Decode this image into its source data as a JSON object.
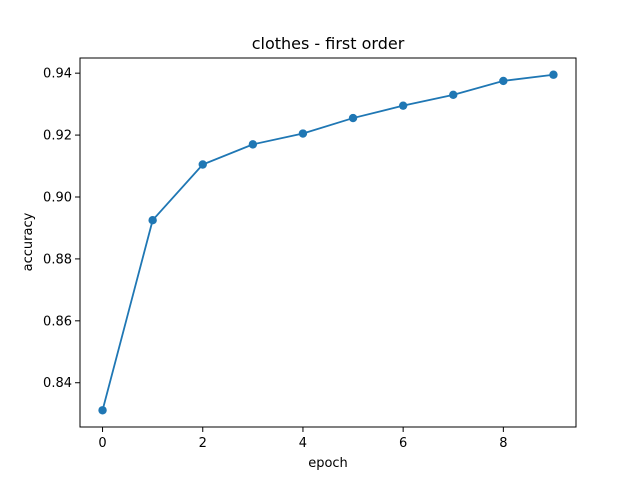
{
  "chart_data": {
    "type": "line",
    "title": "clothes - first order",
    "xlabel": "epoch",
    "ylabel": "accuracy",
    "x": [
      0,
      1,
      2,
      3,
      4,
      5,
      6,
      7,
      8,
      9
    ],
    "series": [
      {
        "values": [
          0.8311,
          0.8925,
          0.9105,
          0.917,
          0.9205,
          0.9255,
          0.9295,
          0.933,
          0.9375,
          0.9395
        ],
        "color": "#1f77b4",
        "marker": "circle"
      }
    ],
    "xlim": [
      -0.45,
      9.45
    ],
    "ylim": [
      0.8257,
      0.9449
    ],
    "xticks": [
      0,
      2,
      4,
      6,
      8
    ],
    "xtick_labels": [
      "0",
      "2",
      "4",
      "6",
      "8"
    ],
    "yticks": [
      0.84,
      0.86,
      0.88,
      0.9,
      0.92,
      0.94
    ],
    "ytick_labels": [
      "0.84",
      "0.86",
      "0.88",
      "0.90",
      "0.92",
      "0.94"
    ],
    "grid": false,
    "legend": false
  }
}
